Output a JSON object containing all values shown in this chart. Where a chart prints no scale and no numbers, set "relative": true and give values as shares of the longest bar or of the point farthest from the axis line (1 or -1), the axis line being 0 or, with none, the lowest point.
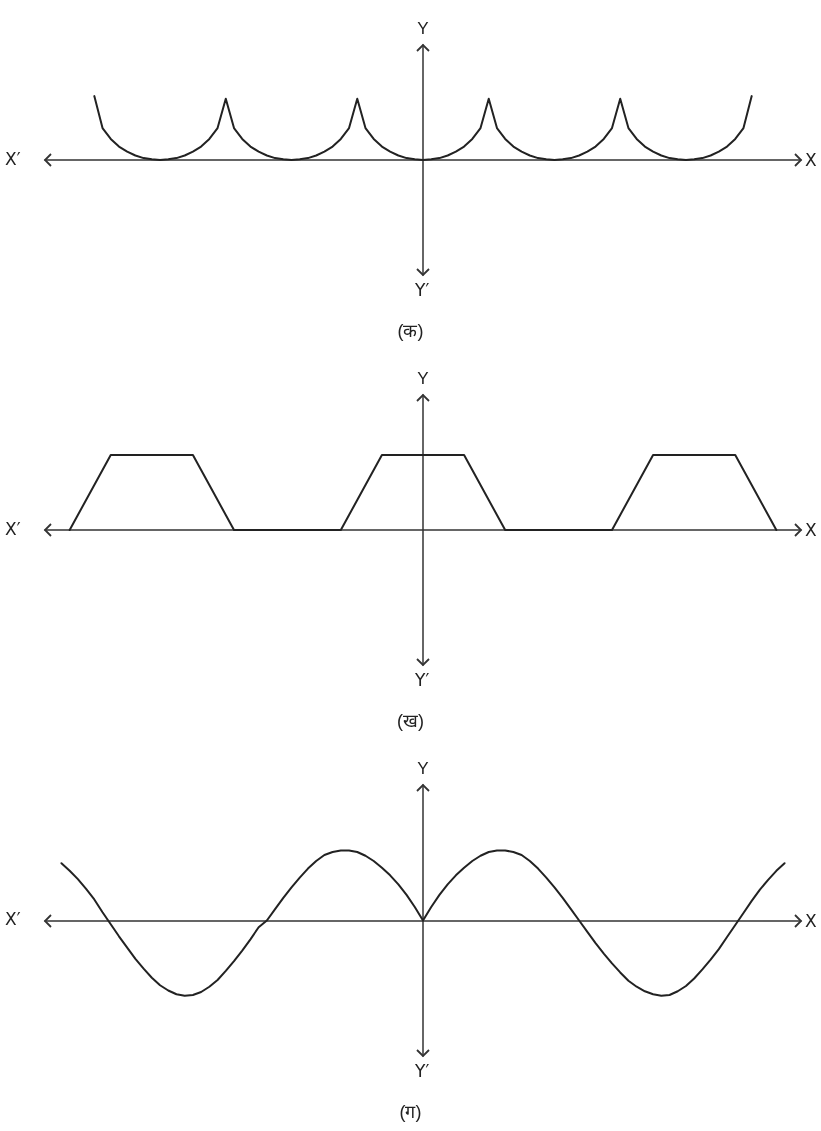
{
  "chart_data": [
    {
      "type": "line",
      "title": "(क)",
      "xlabel": "X",
      "ylabel": "Y",
      "annotations": [
        "X′",
        "Y′"
      ],
      "relative": true,
      "marker": "none",
      "color": "#222222",
      "categories": [
        null,
        null,
        null,
        null,
        null,
        null,
        null,
        null,
        null,
        null,
        null,
        null,
        null,
        null,
        null,
        null,
        null,
        null,
        null,
        null,
        null,
        null,
        null,
        null,
        null,
        null,
        null,
        null,
        null,
        null,
        null,
        null,
        null,
        null,
        null,
        null,
        null,
        null,
        null,
        null,
        null,
        null,
        null,
        null,
        null,
        null,
        null,
        null,
        null,
        null,
        null,
        null,
        null,
        null,
        null,
        null,
        null,
        null,
        null,
        null,
        null,
        null,
        null,
        null,
        null,
        null,
        null,
        null,
        null,
        null,
        null,
        null,
        null,
        null,
        null,
        null,
        null,
        null,
        null,
        null,
        null,
        null,
        null,
        null,
        null,
        null,
        null,
        null,
        null,
        null,
        null,
        null,
        null
      ],
      "values": [
        null,
        null,
        null,
        null,
        null,
        null,
        1,
        0.5,
        0.33,
        0.21,
        0.13,
        0.07,
        0.03,
        0.01,
        0,
        0.01,
        0.03,
        0.07,
        0.13,
        0.21,
        0.33,
        0.5,
        0.96,
        0.5,
        0.33,
        0.21,
        0.13,
        0.07,
        0.03,
        0.01,
        0,
        0.01,
        0.03,
        0.07,
        0.13,
        0.21,
        0.33,
        0.5,
        0.96,
        0.5,
        0.33,
        0.21,
        0.13,
        0.07,
        0.03,
        0.01,
        0,
        0.01,
        0.03,
        0.07,
        0.13,
        0.21,
        0.33,
        0.5,
        0.96,
        0.5,
        0.33,
        0.21,
        0.13,
        0.07,
        0.03,
        0.01,
        0,
        0.01,
        0.03,
        0.07,
        0.13,
        0.21,
        0.33,
        0.5,
        0.96,
        0.5,
        0.33,
        0.21,
        0.13,
        0.07,
        0.03,
        0.01,
        0,
        0.01,
        0.03,
        0.07,
        0.13,
        0.21,
        0.33,
        0.5,
        1,
        null,
        null,
        null,
        null,
        null,
        null
      ]
    },
    {
      "type": "line",
      "title": "(ख)",
      "xlabel": "X",
      "ylabel": "Y",
      "annotations": [
        "X′",
        "Y′"
      ],
      "relative": true,
      "marker": "none",
      "color": "#222222",
      "categories": [
        null,
        null,
        null,
        null,
        null,
        null,
        null,
        null,
        null,
        null,
        null,
        null,
        null,
        null,
        null,
        null,
        null,
        null,
        null,
        null,
        null,
        null,
        null,
        null,
        null,
        null,
        null,
        null,
        null,
        null,
        null,
        null,
        null,
        null,
        null,
        null,
        null,
        null,
        null,
        null,
        null,
        null,
        null,
        null,
        null,
        null,
        null,
        null,
        null,
        null,
        null,
        null,
        null,
        null,
        null,
        null,
        null,
        null,
        null,
        null,
        null,
        null,
        null,
        null,
        null,
        null,
        null,
        null,
        null,
        null,
        null,
        null,
        null,
        null,
        null,
        null,
        null,
        null,
        null,
        null,
        null,
        null,
        null,
        null,
        null,
        null,
        null,
        null,
        null,
        null,
        null,
        null,
        null
      ],
      "values": [
        null,
        null,
        null,
        0,
        0.2,
        0.4,
        0.6,
        0.8,
        1,
        1,
        1,
        1,
        1,
        1,
        1,
        1,
        1,
        1,
        1,
        0.8,
        0.6,
        0.4,
        0.2,
        0,
        0,
        0,
        0,
        0,
        0,
        0,
        0,
        0,
        0,
        0,
        0,
        0,
        0,
        0.2,
        0.4,
        0.6,
        0.8,
        1,
        1,
        1,
        1,
        1,
        1,
        1,
        1,
        1,
        1,
        1,
        0.8,
        0.6,
        0.4,
        0.2,
        0,
        0,
        0,
        0,
        0,
        0,
        0,
        0,
        0,
        0,
        0,
        0,
        0,
        0,
        0.2,
        0.4,
        0.6,
        0.8,
        1,
        1,
        1,
        1,
        1,
        1,
        1,
        1,
        1,
        1,
        1,
        0.8,
        0.6,
        0.4,
        0.2,
        0,
        null,
        null,
        null
      ]
    },
    {
      "type": "line",
      "title": "(ग)",
      "xlabel": "X",
      "ylabel": "Y",
      "annotations": [
        "X′",
        "Y′"
      ],
      "relative": true,
      "marker": "none",
      "color": "#222222",
      "categories": [
        null,
        null,
        null,
        null,
        null,
        null,
        null,
        null,
        null,
        null,
        null,
        null,
        null,
        null,
        null,
        null,
        null,
        null,
        null,
        null,
        null,
        null,
        null,
        null,
        null,
        null,
        null,
        null,
        null,
        null,
        null,
        null,
        null,
        null,
        null,
        null,
        null,
        null,
        null,
        null,
        null,
        null,
        null,
        null,
        null,
        null,
        null,
        null,
        null,
        null,
        null,
        null,
        null,
        null,
        null,
        null,
        null,
        null,
        null,
        null,
        null,
        null,
        null,
        null,
        null,
        null,
        null,
        null,
        null,
        null,
        null,
        null,
        null,
        null,
        null,
        null,
        null,
        null,
        null,
        null,
        null,
        null,
        null,
        null,
        null,
        null,
        null,
        null,
        null,
        null,
        null,
        null,
        null
      ],
      "values": [
        null,
        null,
        0.76,
        0.66,
        0.55,
        0.42,
        0.28,
        0.11,
        -0.05,
        -0.21,
        -0.36,
        -0.51,
        -0.64,
        -0.76,
        -0.86,
        -0.93,
        -0.98,
        -1,
        -0.99,
        -0.95,
        -0.88,
        -0.79,
        -0.67,
        -0.54,
        -0.4,
        -0.25,
        -0.09,
        0,
        0.15,
        0.3,
        0.44,
        0.57,
        0.69,
        0.79,
        0.87,
        0.91,
        0.93,
        0.93,
        0.91,
        0.86,
        0.79,
        0.7,
        0.6,
        0.48,
        0.34,
        0.18,
        0,
        0.18,
        0.34,
        0.48,
        0.6,
        0.7,
        0.79,
        0.86,
        0.91,
        0.93,
        0.93,
        0.91,
        0.87,
        0.79,
        0.69,
        0.57,
        0.44,
        0.3,
        0.15,
        0,
        -0.15,
        -0.3,
        -0.44,
        -0.57,
        -0.69,
        -0.8,
        -0.88,
        -0.94,
        -0.98,
        -1,
        -0.99,
        -0.94,
        -0.87,
        -0.77,
        -0.65,
        -0.52,
        -0.38,
        -0.22,
        -0.06,
        0.1,
        0.26,
        0.41,
        0.54,
        0.66,
        0.76,
        null,
        null
      ]
    }
  ]
}
